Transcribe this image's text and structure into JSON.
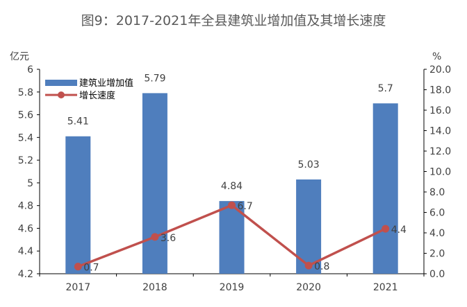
{
  "chart_data": {
    "type": "bar+line",
    "title": "图9：2017-2021年全县建筑业增加值及其增长速度",
    "categories": [
      "2017",
      "2018",
      "2019",
      "2020",
      "2021"
    ],
    "series": [
      {
        "name": "建筑业增加值",
        "kind": "bar",
        "axis": "left",
        "values": [
          5.41,
          5.79,
          4.84,
          5.03,
          5.7
        ],
        "labels": [
          "5.41",
          "5.79",
          "4.84",
          "5.03",
          "5.7"
        ],
        "color": "#4f7ebd"
      },
      {
        "name": "增长速度",
        "kind": "line",
        "axis": "right",
        "values": [
          0.7,
          3.6,
          6.7,
          0.8,
          4.4
        ],
        "labels": [
          "0.7",
          "3.6",
          "6.7",
          "0.8",
          "4.4"
        ],
        "color": "#c0504d"
      }
    ],
    "y_left": {
      "unit": "亿元",
      "ylim": [
        4.2,
        6
      ],
      "ticks": [
        "4.2",
        "4.4",
        "4.6",
        "4.8",
        "5",
        "5.2",
        "5.4",
        "5.6",
        "5.8",
        "6"
      ]
    },
    "y_right": {
      "unit": "%",
      "ylim": [
        0,
        20
      ],
      "ticks": [
        "0.0",
        "2.0",
        "4.0",
        "6.0",
        "8.0",
        "10.0",
        "12.0",
        "14.0",
        "16.0",
        "18.0",
        "20.0"
      ]
    },
    "grid": false,
    "legend_position": "top-left",
    "colors": {
      "title": "#595959",
      "axis_text": "#404040",
      "axis_line": "#000000"
    }
  }
}
